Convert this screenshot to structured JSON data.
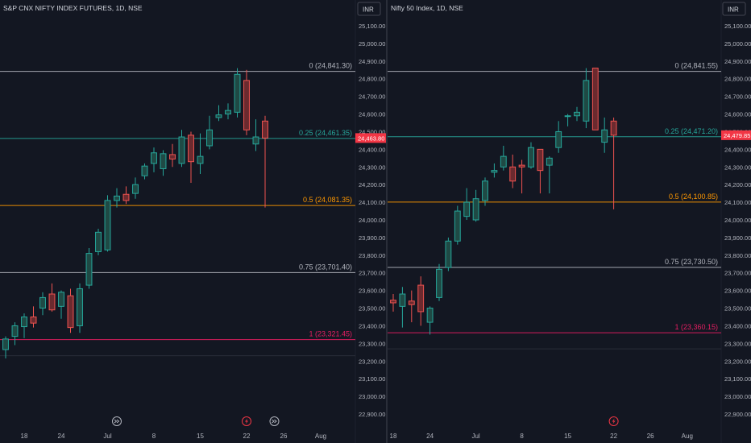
{
  "chart_data": [
    {
      "type": "candlestick",
      "title": "S&P CNX NIFTY INDEX FUTURES, 1D, NSE",
      "currency_button": "INR",
      "y_ticks": [
        "22,900.00",
        "23,000.00",
        "23,100.00",
        "23,200.00",
        "23,300.00",
        "23,400.00",
        "23,500.00",
        "23,600.00",
        "23,700.00",
        "23,800.00",
        "23,900.00",
        "24,000.00",
        "24,100.00",
        "24,200.00",
        "24,300.00",
        "24,400.00",
        "24,500.00",
        "24,600.00",
        "24,700.00",
        "24,800.00",
        "24,900.00",
        "25,000.00",
        "25,100.00"
      ],
      "ylim": [
        22860,
        25170
      ],
      "x_ticks": [
        {
          "label": "18",
          "index": 2
        },
        {
          "label": "24",
          "index": 6
        },
        {
          "label": "Jul",
          "index": 11
        },
        {
          "label": "8",
          "index": 16
        },
        {
          "label": "15",
          "index": 21
        },
        {
          "label": "22",
          "index": 26
        },
        {
          "label": "26",
          "index": 30
        },
        {
          "label": "Aug",
          "index": 34
        }
      ],
      "price_label": "24,463.80",
      "price_value": 24463.8,
      "fib_levels": [
        {
          "label": "0 (24,841.30)",
          "value": 24841.3,
          "color": "#b2b5be"
        },
        {
          "label": "0.25 (24,461.35)",
          "value": 24461.35,
          "color": "#26a69a"
        },
        {
          "label": "0.5 (24,081.35)",
          "value": 24081.35,
          "color": "#ff9800"
        },
        {
          "label": "0.75 (23,701.40)",
          "value": 23701.4,
          "color": "#b2b5be"
        },
        {
          "label": "1 (23,321.45)",
          "value": 23321.45,
          "color": "#e91e63"
        }
      ],
      "candles": [
        {
          "i": 0,
          "o": 23265,
          "h": 23340,
          "l": 23215,
          "c": 23325
        },
        {
          "i": 1,
          "o": 23340,
          "h": 23420,
          "l": 23290,
          "c": 23400
        },
        {
          "i": 2,
          "o": 23395,
          "h": 23470,
          "l": 23330,
          "c": 23450
        },
        {
          "i": 3,
          "o": 23450,
          "h": 23510,
          "l": 23390,
          "c": 23415
        },
        {
          "i": 4,
          "o": 23500,
          "h": 23590,
          "l": 23460,
          "c": 23560
        },
        {
          "i": 5,
          "o": 23580,
          "h": 23640,
          "l": 23480,
          "c": 23490
        },
        {
          "i": 6,
          "o": 23510,
          "h": 23600,
          "l": 23440,
          "c": 23590
        },
        {
          "i": 7,
          "o": 23570,
          "h": 23610,
          "l": 23360,
          "c": 23390
        },
        {
          "i": 8,
          "o": 23400,
          "h": 23640,
          "l": 23360,
          "c": 23610
        },
        {
          "i": 9,
          "o": 23630,
          "h": 23840,
          "l": 23610,
          "c": 23810
        },
        {
          "i": 10,
          "o": 23820,
          "h": 23950,
          "l": 23800,
          "c": 23930
        },
        {
          "i": 11,
          "o": 23830,
          "h": 24140,
          "l": 23820,
          "c": 24110
        },
        {
          "i": 12,
          "o": 24110,
          "h": 24180,
          "l": 24070,
          "c": 24135
        },
        {
          "i": 13,
          "o": 24145,
          "h": 24190,
          "l": 24090,
          "c": 24110
        },
        {
          "i": 14,
          "o": 24150,
          "h": 24240,
          "l": 24120,
          "c": 24200
        },
        {
          "i": 15,
          "o": 24250,
          "h": 24320,
          "l": 24230,
          "c": 24305
        },
        {
          "i": 16,
          "o": 24320,
          "h": 24410,
          "l": 24270,
          "c": 24380
        },
        {
          "i": 17,
          "o": 24290,
          "h": 24395,
          "l": 24250,
          "c": 24375
        },
        {
          "i": 18,
          "o": 24370,
          "h": 24430,
          "l": 24300,
          "c": 24345
        },
        {
          "i": 19,
          "o": 24320,
          "h": 24510,
          "l": 24300,
          "c": 24470
        },
        {
          "i": 20,
          "o": 24480,
          "h": 24500,
          "l": 24210,
          "c": 24330
        },
        {
          "i": 21,
          "o": 24320,
          "h": 24490,
          "l": 24260,
          "c": 24360
        },
        {
          "i": 22,
          "o": 24420,
          "h": 24590,
          "l": 24400,
          "c": 24510
        },
        {
          "i": 23,
          "o": 24580,
          "h": 24650,
          "l": 24560,
          "c": 24595
        },
        {
          "i": 24,
          "o": 24600,
          "h": 24660,
          "l": 24570,
          "c": 24620
        },
        {
          "i": 25,
          "o": 24610,
          "h": 24860,
          "l": 24580,
          "c": 24825
        },
        {
          "i": 26,
          "o": 24790,
          "h": 24850,
          "l": 24480,
          "c": 24510
        },
        {
          "i": 27,
          "o": 24430,
          "h": 24570,
          "l": 24390,
          "c": 24470
        },
        {
          "i": 28,
          "o": 24560,
          "h": 24590,
          "l": 24070,
          "c": 24463.8
        }
      ],
      "markers": [
        {
          "index": 12,
          "type": "forward"
        },
        {
          "index": 26,
          "type": "flash"
        },
        {
          "index": 29,
          "type": "forward"
        }
      ]
    },
    {
      "type": "candlestick",
      "title": "Nifty 50 Index, 1D, NSE",
      "currency_button": "INR",
      "y_ticks": [
        "22,900.00",
        "23,000.00",
        "23,100.00",
        "23,200.00",
        "23,300.00",
        "23,400.00",
        "23,500.00",
        "23,600.00",
        "23,700.00",
        "23,800.00",
        "23,900.00",
        "24,000.00",
        "24,100.00",
        "24,200.00",
        "24,300.00",
        "24,400.00",
        "24,500.00",
        "24,600.00",
        "24,700.00",
        "24,800.00",
        "24,900.00",
        "25,000.00",
        "25,100.00"
      ],
      "ylim": [
        22860,
        25170
      ],
      "x_ticks": [
        {
          "label": "18",
          "index": 0
        },
        {
          "label": "24",
          "index": 4
        },
        {
          "label": "Jul",
          "index": 9
        },
        {
          "label": "8",
          "index": 14
        },
        {
          "label": "15",
          "index": 19
        },
        {
          "label": "22",
          "index": 24
        },
        {
          "label": "26",
          "index": 28
        },
        {
          "label": "Aug",
          "index": 32
        }
      ],
      "price_label": "24,479.85",
      "price_value": 24479.85,
      "fib_levels": [
        {
          "label": "0 (24,841.55)",
          "value": 24841.55,
          "color": "#b2b5be"
        },
        {
          "label": "0.25 (24,471.20)",
          "value": 24471.2,
          "color": "#26a69a"
        },
        {
          "label": "0.5 (24,100.85)",
          "value": 24100.85,
          "color": "#ff9800"
        },
        {
          "label": "0.75 (23,730.50)",
          "value": 23730.5,
          "color": "#b2b5be"
        },
        {
          "label": "1 (23,360.15)",
          "value": 23360.15,
          "color": "#e91e63"
        }
      ],
      "candles": [
        {
          "i": 0,
          "o": 23545,
          "h": 23580,
          "l": 23480,
          "c": 23530
        },
        {
          "i": 1,
          "o": 23510,
          "h": 23620,
          "l": 23390,
          "c": 23580
        },
        {
          "i": 2,
          "o": 23540,
          "h": 23600,
          "l": 23420,
          "c": 23520
        },
        {
          "i": 3,
          "o": 23630,
          "h": 23680,
          "l": 23400,
          "c": 23480
        },
        {
          "i": 4,
          "o": 23420,
          "h": 23510,
          "l": 23350,
          "c": 23500
        },
        {
          "i": 5,
          "o": 23560,
          "h": 23750,
          "l": 23540,
          "c": 23720
        },
        {
          "i": 6,
          "o": 23730,
          "h": 23900,
          "l": 23710,
          "c": 23880
        },
        {
          "i": 7,
          "o": 23880,
          "h": 24080,
          "l": 23860,
          "c": 24050
        },
        {
          "i": 8,
          "o": 24020,
          "h": 24180,
          "l": 24000,
          "c": 24100
        },
        {
          "i": 9,
          "o": 24000,
          "h": 24170,
          "l": 23990,
          "c": 24120
        },
        {
          "i": 10,
          "o": 24110,
          "h": 24240,
          "l": 24080,
          "c": 24220
        },
        {
          "i": 11,
          "o": 24270,
          "h": 24320,
          "l": 24240,
          "c": 24280
        },
        {
          "i": 12,
          "o": 24300,
          "h": 24420,
          "l": 24280,
          "c": 24360
        },
        {
          "i": 13,
          "o": 24300,
          "h": 24370,
          "l": 24180,
          "c": 24220
        },
        {
          "i": 14,
          "o": 24310,
          "h": 24340,
          "l": 24150,
          "c": 24300
        },
        {
          "i": 15,
          "o": 24300,
          "h": 24440,
          "l": 24290,
          "c": 24410
        },
        {
          "i": 16,
          "o": 24400,
          "h": 24400,
          "l": 24150,
          "c": 24280
        },
        {
          "i": 17,
          "o": 24310,
          "h": 24360,
          "l": 24150,
          "c": 24350
        },
        {
          "i": 18,
          "o": 24410,
          "h": 24560,
          "l": 24380,
          "c": 24500
        },
        {
          "i": 19,
          "o": 24590,
          "h": 24600,
          "l": 24530,
          "c": 24590
        },
        {
          "i": 20,
          "o": 24590,
          "h": 24640,
          "l": 24560,
          "c": 24610
        },
        {
          "i": 21,
          "o": 24560,
          "h": 24860,
          "l": 24520,
          "c": 24790
        },
        {
          "i": 22,
          "o": 24860,
          "h": 24860,
          "l": 24510,
          "c": 24510
        },
        {
          "i": 23,
          "o": 24440,
          "h": 24580,
          "l": 24380,
          "c": 24510
        },
        {
          "i": 24,
          "o": 24560,
          "h": 24580,
          "l": 24060,
          "c": 24479.85
        }
      ],
      "markers": [
        {
          "index": 24,
          "type": "flash"
        }
      ]
    }
  ]
}
